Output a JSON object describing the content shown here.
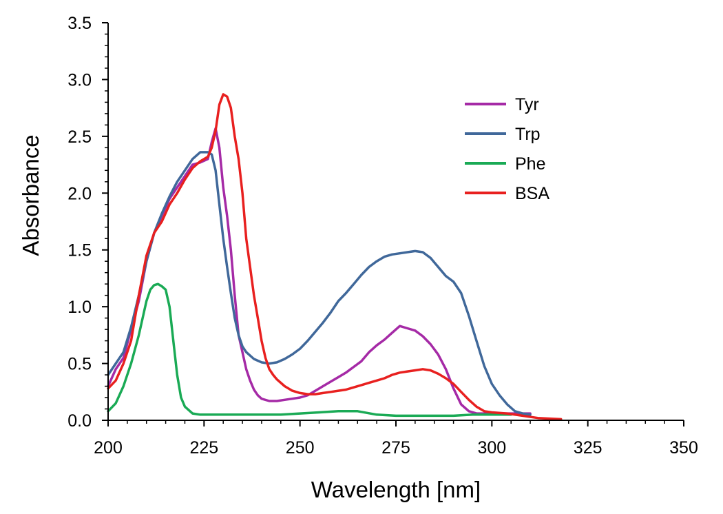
{
  "chart_data": {
    "type": "line",
    "title": "",
    "xlabel": "Wavelength [nm]",
    "ylabel": "Absorbance",
    "xlim": [
      200,
      350
    ],
    "ylim": [
      0,
      3.5
    ],
    "x_ticks": [
      200,
      225,
      250,
      275,
      300,
      325,
      350
    ],
    "x_tick_labels": [
      "200",
      "225",
      "250",
      "275",
      "300",
      "325",
      "350"
    ],
    "y_ticks": [
      0,
      0.5,
      1,
      1.5,
      2,
      2.5,
      3,
      3.5
    ],
    "y_tick_labels": [
      "0.0",
      "0.5",
      "1.0",
      "1.5",
      "2.0",
      "2.5",
      "3.0",
      "3.5"
    ],
    "grid": false,
    "legend_position": "top-right",
    "series": [
      {
        "name": "Tyr",
        "color": "#a52aa6",
        "x": [
          200,
          202,
          204,
          206,
          208,
          210,
          212,
          214,
          216,
          218,
          220,
          222,
          224,
          226,
          227,
          228,
          229,
          230,
          231,
          232,
          233,
          234,
          235,
          236,
          237,
          238,
          239,
          240,
          242,
          244,
          246,
          248,
          250,
          252,
          254,
          256,
          258,
          260,
          262,
          264,
          266,
          268,
          270,
          272,
          274,
          276,
          278,
          280,
          282,
          284,
          286,
          288,
          290,
          292,
          294,
          296,
          298,
          300,
          302,
          305,
          310
        ],
        "y": [
          0.3,
          0.45,
          0.55,
          0.8,
          1.05,
          1.4,
          1.65,
          1.8,
          1.95,
          2.05,
          2.15,
          2.25,
          2.27,
          2.3,
          2.45,
          2.57,
          2.4,
          2.05,
          1.8,
          1.5,
          1.1,
          0.75,
          0.6,
          0.45,
          0.35,
          0.27,
          0.22,
          0.19,
          0.17,
          0.17,
          0.18,
          0.19,
          0.2,
          0.22,
          0.26,
          0.3,
          0.34,
          0.38,
          0.42,
          0.47,
          0.52,
          0.6,
          0.66,
          0.71,
          0.77,
          0.83,
          0.81,
          0.79,
          0.74,
          0.67,
          0.58,
          0.45,
          0.28,
          0.14,
          0.08,
          0.06,
          0.06,
          0.06,
          0.06,
          0.06,
          0.06
        ]
      },
      {
        "name": "Trp",
        "color": "#40689a",
        "x": [
          200,
          202,
          204,
          206,
          208,
          210,
          212,
          214,
          216,
          218,
          220,
          222,
          224,
          226,
          227,
          228,
          229,
          230,
          231,
          232,
          233,
          234,
          235,
          236,
          238,
          240,
          242,
          244,
          246,
          248,
          250,
          252,
          254,
          256,
          258,
          260,
          262,
          264,
          266,
          268,
          270,
          272,
          274,
          276,
          278,
          280,
          282,
          284,
          286,
          288,
          290,
          292,
          294,
          296,
          298,
          300,
          302,
          304,
          306,
          308,
          310
        ],
        "y": [
          0.4,
          0.5,
          0.6,
          0.82,
          1.1,
          1.4,
          1.65,
          1.82,
          1.97,
          2.1,
          2.2,
          2.3,
          2.36,
          2.36,
          2.34,
          2.2,
          1.9,
          1.6,
          1.35,
          1.12,
          0.9,
          0.75,
          0.65,
          0.6,
          0.54,
          0.51,
          0.5,
          0.51,
          0.54,
          0.58,
          0.63,
          0.7,
          0.78,
          0.86,
          0.95,
          1.05,
          1.12,
          1.2,
          1.28,
          1.35,
          1.4,
          1.44,
          1.46,
          1.47,
          1.48,
          1.49,
          1.48,
          1.43,
          1.35,
          1.27,
          1.22,
          1.12,
          0.92,
          0.7,
          0.48,
          0.32,
          0.22,
          0.14,
          0.08,
          0.06,
          0.05
        ]
      },
      {
        "name": "Phe",
        "color": "#1aaa55",
        "x": [
          200,
          202,
          204,
          206,
          208,
          210,
          211,
          212,
          213,
          214,
          215,
          216,
          217,
          218,
          219,
          220,
          222,
          224,
          226,
          230,
          235,
          240,
          245,
          250,
          255,
          260,
          265,
          270,
          275,
          280,
          285,
          290,
          295,
          300,
          305
        ],
        "y": [
          0.08,
          0.15,
          0.3,
          0.5,
          0.75,
          1.05,
          1.15,
          1.19,
          1.2,
          1.18,
          1.15,
          1.0,
          0.7,
          0.4,
          0.2,
          0.12,
          0.06,
          0.05,
          0.05,
          0.05,
          0.05,
          0.05,
          0.05,
          0.06,
          0.07,
          0.08,
          0.08,
          0.05,
          0.04,
          0.04,
          0.04,
          0.04,
          0.05,
          0.05,
          0.05
        ]
      },
      {
        "name": "BSA",
        "color": "#e8201f",
        "x": [
          200,
          202,
          204,
          206,
          208,
          210,
          212,
          214,
          216,
          218,
          220,
          222,
          224,
          226,
          227,
          228,
          229,
          230,
          231,
          232,
          233,
          234,
          235,
          236,
          237,
          238,
          239,
          240,
          241,
          242,
          243,
          244,
          246,
          248,
          250,
          252,
          254,
          256,
          258,
          260,
          262,
          264,
          266,
          268,
          270,
          272,
          274,
          276,
          278,
          280,
          282,
          284,
          286,
          288,
          290,
          292,
          294,
          296,
          298,
          300,
          304,
          308,
          312,
          318
        ],
        "y": [
          0.28,
          0.35,
          0.5,
          0.7,
          1.1,
          1.45,
          1.65,
          1.75,
          1.9,
          2.0,
          2.12,
          2.22,
          2.28,
          2.32,
          2.4,
          2.55,
          2.78,
          2.87,
          2.85,
          2.75,
          2.5,
          2.3,
          2.0,
          1.6,
          1.35,
          1.1,
          0.9,
          0.7,
          0.55,
          0.45,
          0.4,
          0.36,
          0.3,
          0.26,
          0.24,
          0.23,
          0.23,
          0.24,
          0.25,
          0.26,
          0.27,
          0.29,
          0.31,
          0.33,
          0.35,
          0.37,
          0.4,
          0.42,
          0.43,
          0.44,
          0.45,
          0.44,
          0.41,
          0.37,
          0.32,
          0.25,
          0.18,
          0.12,
          0.08,
          0.07,
          0.06,
          0.04,
          0.02,
          0.01
        ]
      }
    ]
  }
}
